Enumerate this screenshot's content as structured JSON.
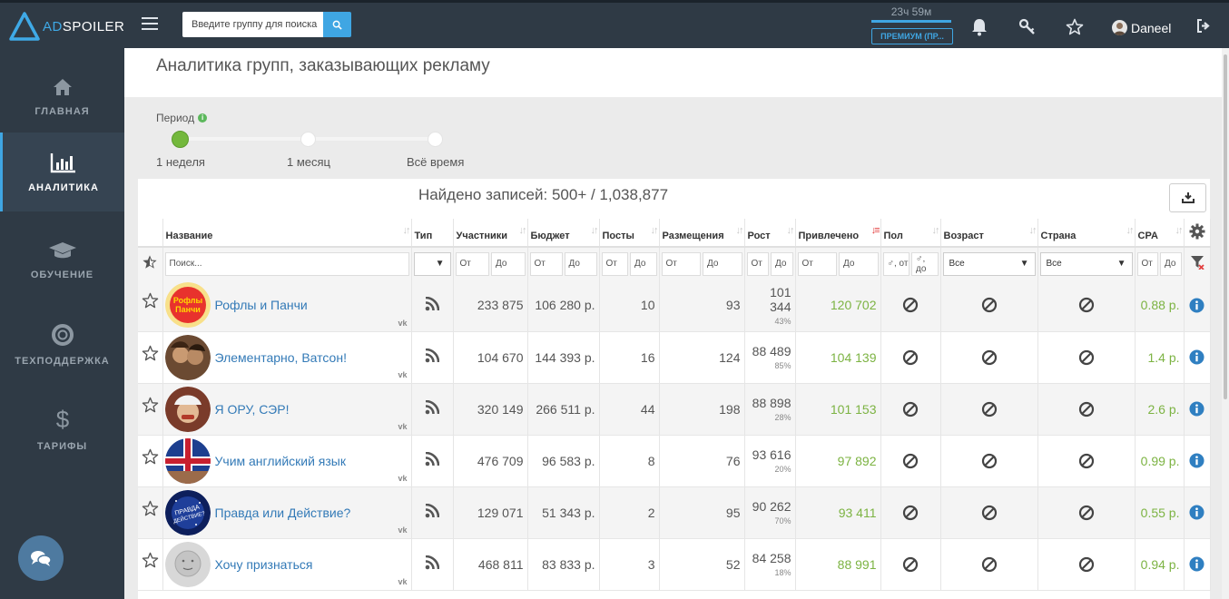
{
  "app": {
    "logo_ad": "AD",
    "logo_rest": "SPOILER"
  },
  "topbar": {
    "search_placeholder": "Введите группу для поиска",
    "timer": "23ч 59м",
    "premium": "ПРЕМИУМ (ПР...",
    "username": "Daneel"
  },
  "sidebar": {
    "items": [
      {
        "label": "ГЛАВНАЯ",
        "icon": "home-icon"
      },
      {
        "label": "АНАЛИТИКА",
        "icon": "bar-chart-icon"
      },
      {
        "label": "ОБУЧЕНИЕ",
        "icon": "graduation-cap-icon"
      },
      {
        "label": "ТЕХПОДДЕРЖКА",
        "icon": "lifebuoy-icon"
      },
      {
        "label": "ТАРИФЫ",
        "icon": "dollar-icon"
      }
    ],
    "active": "АНАЛИТИКА"
  },
  "page": {
    "title": "Аналитика групп, заказывающих рекламу",
    "period_label": "Период",
    "period_options": [
      "1 неделя",
      "1 месяц",
      "Всё время"
    ],
    "period_selected": "1 неделя",
    "found": "Найдено записей: 500+ / 1,038,877"
  },
  "table": {
    "columns": [
      "Название",
      "Тип",
      "Участники",
      "Бюджет",
      "Посты",
      "Размещения",
      "Рост",
      "Привлечено",
      "Пол",
      "Возраст",
      "Страна",
      "CPA"
    ],
    "filters": {
      "search_placeholder": "Поиск...",
      "from": "От",
      "to": "До",
      "gender_from": "♂, от",
      "gender_to": "♂, до",
      "all": "Все"
    },
    "rows": [
      {
        "name": "Рофлы и Панчи",
        "source": "vk",
        "members": "233 875",
        "budget": "106 280 р.",
        "posts": "10",
        "placements": "93",
        "growth": "101 344",
        "growth_pct": "43%",
        "attracted": "120 702",
        "cpa": "0.88 р."
      },
      {
        "name": "Элементарно, Ватсон!",
        "source": "vk",
        "members": "104 670",
        "budget": "144 393 р.",
        "posts": "16",
        "placements": "124",
        "growth": "88 489",
        "growth_pct": "85%",
        "attracted": "104 139",
        "cpa": "1.4 р."
      },
      {
        "name": "Я ОРУ, СЭР!",
        "source": "vk",
        "members": "320 149",
        "budget": "266 511 р.",
        "posts": "44",
        "placements": "198",
        "growth": "88 898",
        "growth_pct": "28%",
        "attracted": "101 153",
        "cpa": "2.6 р."
      },
      {
        "name": "Учим английский язык",
        "source": "vk",
        "members": "476 709",
        "budget": "96 583 р.",
        "posts": "8",
        "placements": "76",
        "growth": "93 616",
        "growth_pct": "20%",
        "attracted": "97 892",
        "cpa": "0.99 р."
      },
      {
        "name": "Правда или Действие?",
        "source": "vk",
        "members": "129 071",
        "budget": "51 343 р.",
        "posts": "2",
        "placements": "95",
        "growth": "90 262",
        "growth_pct": "70%",
        "attracted": "93 411",
        "cpa": "0.55 р."
      },
      {
        "name": "Хочу признаться",
        "source": "vk",
        "members": "468 811",
        "budget": "83 833 р.",
        "posts": "3",
        "placements": "52",
        "growth": "84 258",
        "growth_pct": "18%",
        "attracted": "88 991",
        "cpa": "0.94 р."
      }
    ]
  },
  "colors": {
    "topbar": "#2f3a45",
    "accent": "#3fa6e3",
    "green": "#7cb342",
    "link": "#337ab7"
  }
}
